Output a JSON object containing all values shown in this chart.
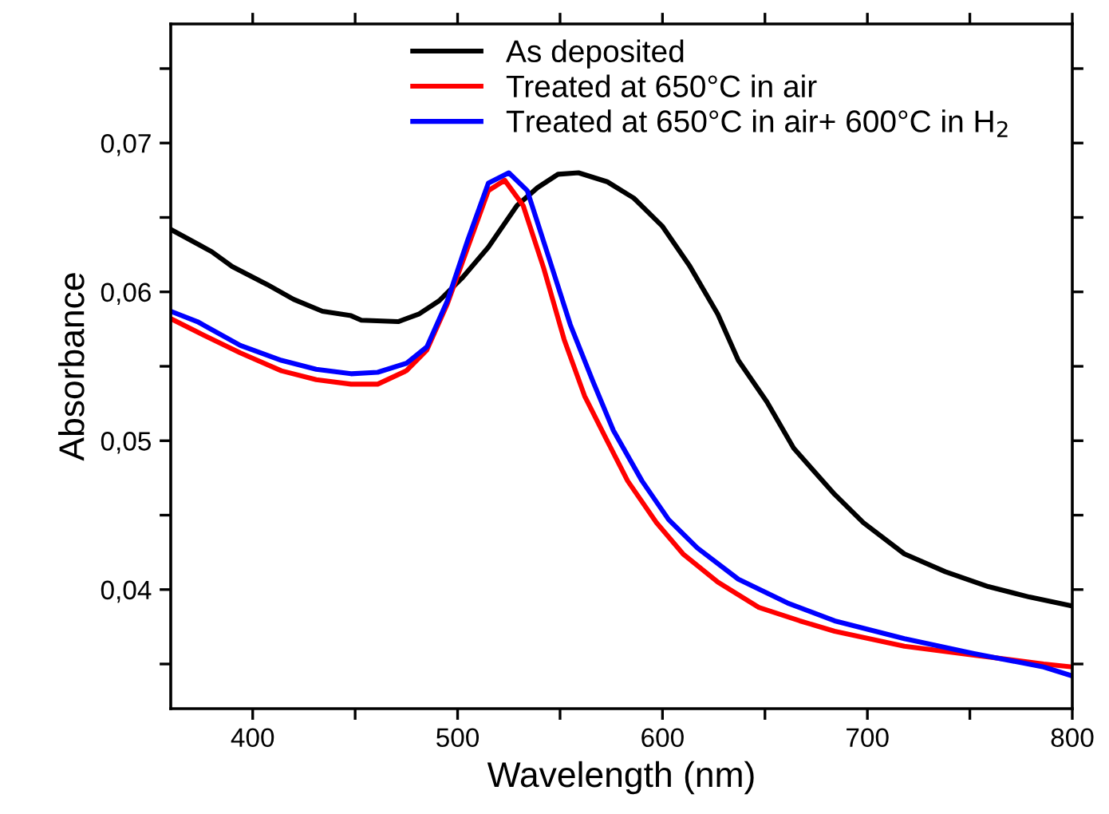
{
  "chart_data": {
    "type": "line",
    "xlabel": "Wavelength (nm)",
    "ylabel": "Absorbance",
    "xlim": [
      360,
      800
    ],
    "ylim": [
      0.032,
      0.078
    ],
    "xticks": [
      400,
      {
        "value": 450,
        "label": null
      },
      500,
      {
        "value": 550,
        "label": null
      },
      600,
      {
        "value": 650,
        "label": null
      },
      700,
      {
        "value": 750,
        "label": null
      },
      800
    ],
    "yticks": [
      {
        "value": 0.035,
        "label": null
      },
      {
        "value": 0.04,
        "label": "0,04"
      },
      {
        "value": 0.045,
        "label": null
      },
      {
        "value": 0.05,
        "label": "0,05"
      },
      {
        "value": 0.055,
        "label": null
      },
      {
        "value": 0.06,
        "label": "0,06"
      },
      {
        "value": 0.065,
        "label": null
      },
      {
        "value": 0.07,
        "label": "0,07"
      },
      {
        "value": 0.075,
        "label": null
      }
    ],
    "grid": false,
    "legend": "top",
    "marker": "none",
    "line_style": "solid",
    "series": [
      {
        "name": "As deposited",
        "color": "#000000",
        "x": [
          360,
          380,
          390,
          407,
          420,
          434,
          448,
          453,
          471,
          481,
          491,
          502,
          515,
          529,
          539,
          549,
          559,
          573,
          586,
          600,
          613,
          627,
          637,
          651,
          664,
          684,
          698,
          718,
          738,
          759,
          779,
          800
        ],
        "values": [
          0.0642,
          0.0627,
          0.0617,
          0.0605,
          0.0595,
          0.0587,
          0.0584,
          0.0581,
          0.058,
          0.0585,
          0.0594,
          0.0609,
          0.063,
          0.0658,
          0.067,
          0.0679,
          0.068,
          0.0674,
          0.0663,
          0.0644,
          0.0618,
          0.0585,
          0.0554,
          0.0526,
          0.0495,
          0.0464,
          0.0445,
          0.0424,
          0.0412,
          0.0402,
          0.0395,
          0.0389
        ]
      },
      {
        "name": "Treated at 650°C in air",
        "color": "#ff0000",
        "x": [
          360,
          373,
          394,
          414,
          431,
          448,
          461,
          475,
          485,
          495,
          505,
          515,
          523,
          532,
          542,
          552,
          562,
          573,
          583,
          597,
          610,
          627,
          647,
          667,
          684,
          718,
          752,
          786,
          800
        ],
        "values": [
          0.0582,
          0.0573,
          0.0559,
          0.0547,
          0.0541,
          0.0538,
          0.0538,
          0.0547,
          0.0561,
          0.0592,
          0.063,
          0.0668,
          0.0675,
          0.0658,
          0.0616,
          0.0568,
          0.053,
          0.05,
          0.0473,
          0.0445,
          0.0424,
          0.0405,
          0.0388,
          0.0379,
          0.0372,
          0.0362,
          0.0356,
          0.035,
          0.0348
        ]
      },
      {
        "name": "Treated at 650°C in air+ 600°C in H$_{2}$",
        "color": "#0000ff",
        "x": [
          360,
          373,
          394,
          414,
          431,
          448,
          461,
          475,
          485,
          495,
          505,
          515,
          525,
          534,
          545,
          555,
          566,
          576,
          590,
          603,
          617,
          637,
          661,
          684,
          718,
          752,
          786,
          800
        ],
        "values": [
          0.0587,
          0.058,
          0.0564,
          0.0554,
          0.0548,
          0.0545,
          0.0546,
          0.0552,
          0.0563,
          0.0594,
          0.0635,
          0.0673,
          0.068,
          0.0668,
          0.0621,
          0.0578,
          0.054,
          0.0507,
          0.0473,
          0.0447,
          0.0428,
          0.0407,
          0.0391,
          0.0379,
          0.0367,
          0.0357,
          0.0348,
          0.0342
        ]
      }
    ]
  }
}
